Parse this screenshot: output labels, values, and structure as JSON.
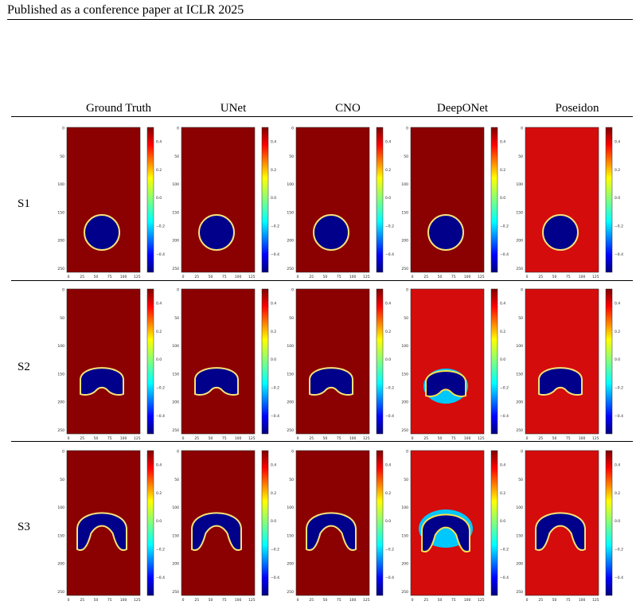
{
  "header": {
    "text": "Published as a conference paper at ICLR 2025"
  },
  "columns": [
    "Ground Truth",
    "UNet",
    "CNO",
    "DeepONet",
    "Poseidon"
  ],
  "rows": [
    "S1",
    "S2",
    "S3"
  ],
  "axes": {
    "x_ticks": [
      "0",
      "25",
      "50",
      "75",
      "100",
      "125"
    ],
    "y_ticks": [
      "0",
      "50",
      "100",
      "150",
      "200",
      "250"
    ],
    "colorbar_ticks": [
      "0.4",
      "0.2",
      "0.0",
      "−0.2",
      "−0.4"
    ]
  },
  "colors": {
    "field": "#8b0000",
    "field_bright": "#d40c0c",
    "blob": "#00008b"
  }
}
